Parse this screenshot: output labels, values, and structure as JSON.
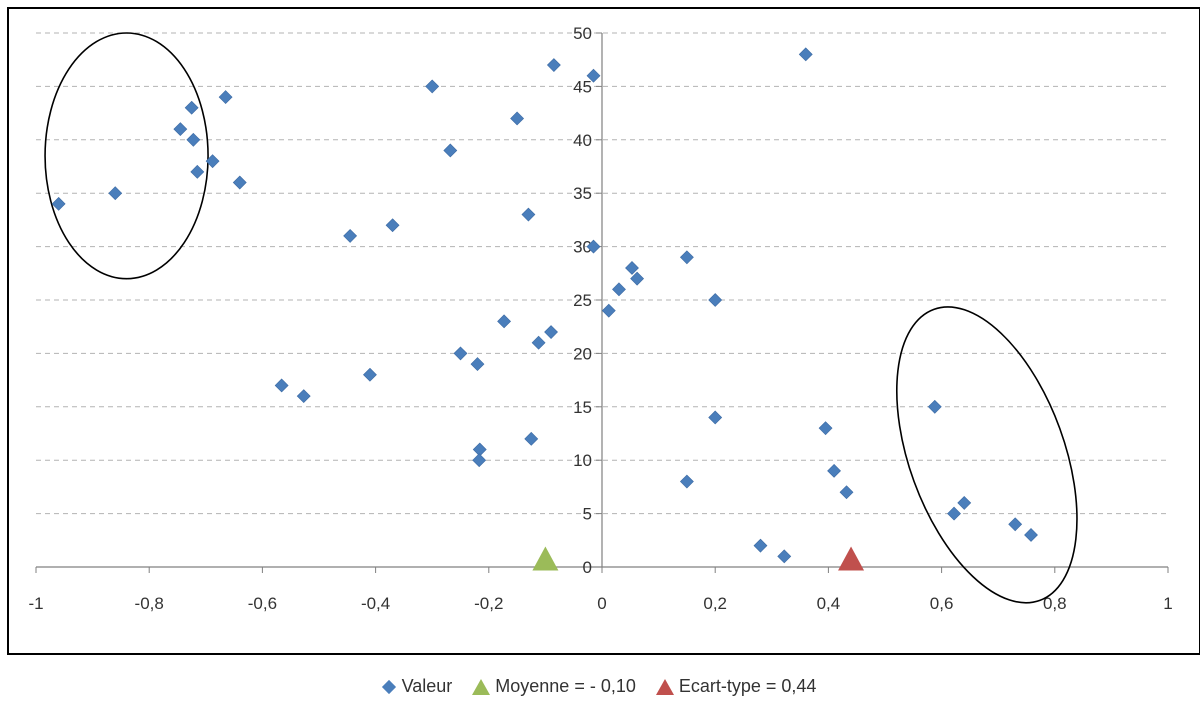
{
  "chart_data": {
    "type": "scatter",
    "xlim": [
      -1,
      1
    ],
    "ylim": [
      0,
      50
    ],
    "x_ticks": [
      -1,
      -0.8,
      -0.6,
      -0.4,
      -0.2,
      0,
      0.2,
      0.4,
      0.6,
      0.8,
      1
    ],
    "x_tick_labels": [
      "-1",
      "-0,8",
      "-0,6",
      "-0,4",
      "-0,2",
      "0",
      "0,2",
      "0,4",
      "0,6",
      "0,8",
      "1"
    ],
    "y_ticks": [
      0,
      5,
      10,
      15,
      20,
      25,
      30,
      35,
      40,
      45,
      50
    ],
    "y_tick_labels": [
      "0",
      "5",
      "10",
      "15",
      "20",
      "25",
      "30",
      "35",
      "40",
      "45",
      "50"
    ],
    "grid": "horizontal dashed",
    "legend_position": "bottom",
    "series": [
      {
        "name": "Valeur",
        "marker": "diamond",
        "color": "#4a7ebb",
        "points": [
          [
            -0.96,
            34
          ],
          [
            -0.86,
            35
          ],
          [
            -0.745,
            41
          ],
          [
            -0.725,
            43
          ],
          [
            -0.722,
            40
          ],
          [
            -0.715,
            37
          ],
          [
            -0.688,
            38
          ],
          [
            -0.665,
            44
          ],
          [
            -0.64,
            36
          ],
          [
            -0.566,
            17
          ],
          [
            -0.527,
            16
          ],
          [
            -0.445,
            31
          ],
          [
            -0.41,
            18
          ],
          [
            -0.37,
            32
          ],
          [
            -0.3,
            45
          ],
          [
            -0.268,
            39
          ],
          [
            -0.25,
            20
          ],
          [
            -0.22,
            19
          ],
          [
            -0.216,
            11
          ],
          [
            -0.217,
            10
          ],
          [
            -0.173,
            23
          ],
          [
            -0.15,
            42
          ],
          [
            -0.13,
            33
          ],
          [
            -0.125,
            12
          ],
          [
            -0.112,
            21
          ],
          [
            -0.09,
            22
          ],
          [
            -0.085,
            47
          ],
          [
            -0.015,
            46
          ],
          [
            -0.015,
            30
          ],
          [
            0.012,
            24
          ],
          [
            0.03,
            26
          ],
          [
            0.053,
            28
          ],
          [
            0.062,
            27
          ],
          [
            0.15,
            29
          ],
          [
            0.15,
            8
          ],
          [
            0.2,
            25
          ],
          [
            0.2,
            14
          ],
          [
            0.28,
            2
          ],
          [
            0.322,
            1
          ],
          [
            0.36,
            48
          ],
          [
            0.395,
            13
          ],
          [
            0.41,
            9
          ],
          [
            0.432,
            7
          ],
          [
            0.588,
            15
          ],
          [
            0.622,
            5
          ],
          [
            0.64,
            6
          ],
          [
            0.73,
            4
          ],
          [
            0.758,
            3
          ]
        ]
      },
      {
        "name": "Moyenne = - 0,10",
        "marker": "triangle",
        "color": "#9bbb59",
        "points": [
          [
            -0.1,
            0.8
          ]
        ]
      },
      {
        "name": "Ecart-type = 0,44",
        "marker": "triangle",
        "color": "#c0504d",
        "points": [
          [
            0.44,
            0.8
          ]
        ]
      }
    ],
    "annotations": [
      {
        "shape": "ellipse",
        "cx": -0.84,
        "cy": 38.5,
        "rx": 0.144,
        "ry": 11.5,
        "rotate": 0
      },
      {
        "shape": "ellipse",
        "cx": 0.68,
        "cy": 10.5,
        "rx": 0.137,
        "ry": 14.5,
        "rotate": -20
      }
    ]
  },
  "legend": {
    "items": [
      {
        "label": "Valeur",
        "symbol": "diamond"
      },
      {
        "label": "Moyenne = - 0,10",
        "symbol": "triangle-green"
      },
      {
        "label": "Ecart-type = 0,44",
        "symbol": "triangle-red"
      }
    ]
  }
}
